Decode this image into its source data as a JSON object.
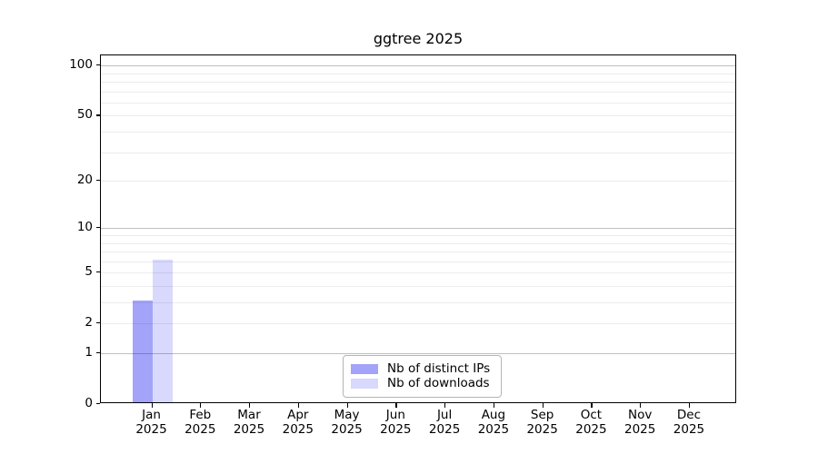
{
  "chart_data": {
    "type": "bar",
    "title": "ggtree 2025",
    "categories": [
      "Jan",
      "Feb",
      "Mar",
      "Apr",
      "May",
      "Jun",
      "Jul",
      "Aug",
      "Sep",
      "Oct",
      "Nov",
      "Dec"
    ],
    "xtick_second_line": "2025",
    "series": [
      {
        "name": "Nb of distinct IPs",
        "color": "rgba(0,0,240,0.36)",
        "values": [
          3,
          0,
          0,
          0,
          0,
          0,
          0,
          0,
          0,
          0,
          0,
          0
        ]
      },
      {
        "name": "Nb of downloads",
        "color": "rgba(0,0,240,0.15)",
        "values": [
          6,
          0,
          0,
          0,
          0,
          0,
          0,
          0,
          0,
          0,
          0,
          0
        ]
      }
    ],
    "yaxis": {
      "scale": "log1p",
      "ticks": [
        0,
        1,
        2,
        5,
        10,
        20,
        50,
        100
      ],
      "limit_max": 115,
      "major_gridlines": [
        1,
        10,
        100
      ],
      "minor_gridlines": [
        2,
        3,
        4,
        5,
        6,
        7,
        8,
        9,
        20,
        30,
        40,
        50,
        60,
        70,
        80,
        90
      ]
    },
    "legend": {
      "entries": [
        "Nb of distinct IPs",
        "Nb of downloads"
      ],
      "position": "bottom-center"
    },
    "grid": true,
    "accent_colors": {
      "bar_dark": "#a8a8f5",
      "bar_light": "#dcdcf8",
      "grid_minor": "#ececec",
      "grid_major": "#c0c0c0"
    }
  }
}
